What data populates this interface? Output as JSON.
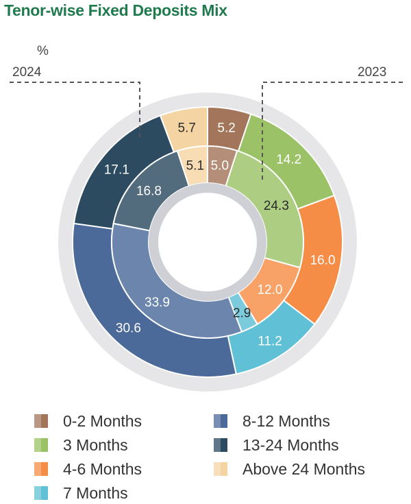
{
  "title": "Tenor-wise Fixed Deposits Mix",
  "unit": "%",
  "chart_data": {
    "type": "pie",
    "subtype": "nested-donut",
    "title": "Tenor-wise Fixed Deposits Mix",
    "unit": "%",
    "categories": [
      "0-2 Months",
      "3 Months",
      "4-6 Months",
      "7 Months",
      "8-12 Months",
      "13-24 Months",
      "Above 24 Months"
    ],
    "colors": [
      "#a3755a",
      "#9bc266",
      "#f68d46",
      "#5fc0d6",
      "#4b6a9a",
      "#2c4a60",
      "#f5d4a4"
    ],
    "series": [
      {
        "name": "2023",
        "ring": "outer",
        "values": [
          5.2,
          14.2,
          16.0,
          11.2,
          30.6,
          17.1,
          5.7
        ]
      },
      {
        "name": "2024",
        "ring": "inner",
        "values": [
          5.0,
          24.3,
          12.0,
          2.9,
          33.9,
          16.8,
          5.1
        ]
      }
    ],
    "legend_position": "bottom"
  }
}
